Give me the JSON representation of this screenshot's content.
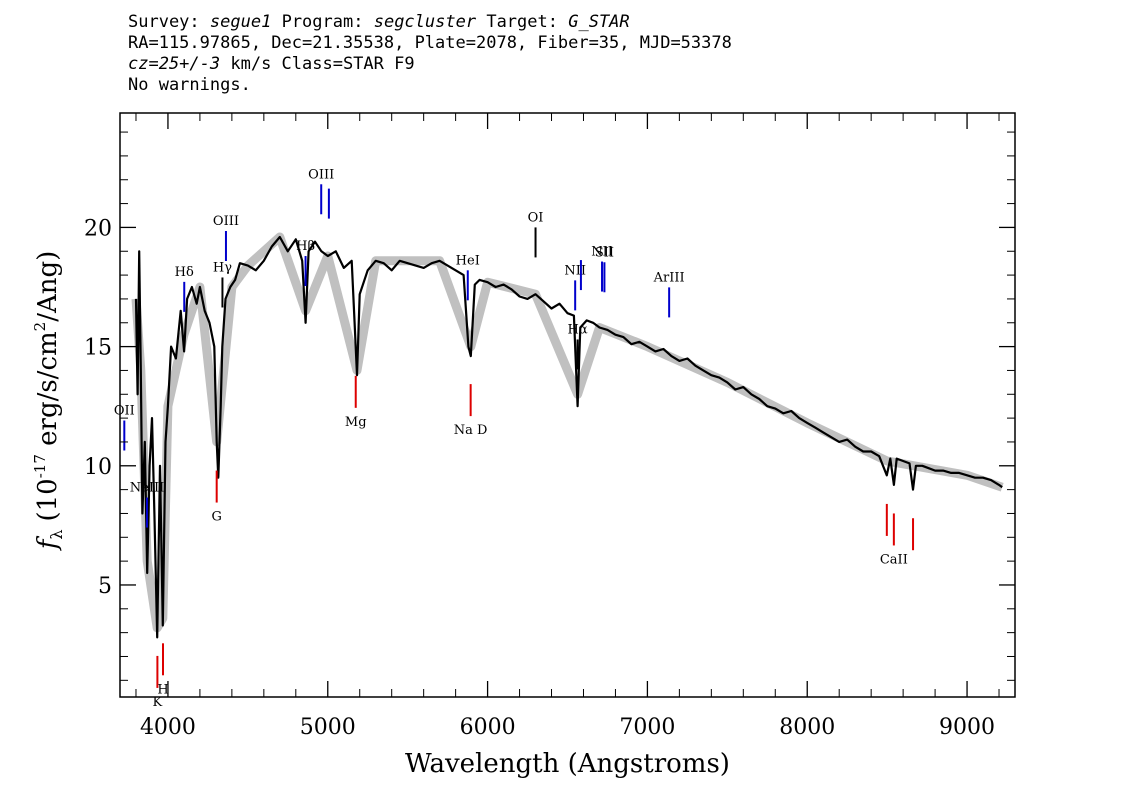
{
  "header": {
    "survey_label": "Survey:",
    "survey": "segue1",
    "program_label": "Program:",
    "program": "segcluster",
    "target_label": "Target:",
    "target": "G_STAR",
    "line2": "RA=115.97865, Dec=21.35538, Plate=2078, Fiber=35, MJD=53378",
    "cz": "cz=25+/-3",
    "line3_rest": " km/s Class=STAR F9",
    "line4": "No warnings."
  },
  "chart_data": {
    "type": "line",
    "xlabel": "Wavelength (Angstroms)",
    "ylabel_main": "(10",
    "ylabel_exp": "-17",
    "ylabel_mid": " erg/s/cm",
    "ylabel_exp2": "2",
    "ylabel_end": "/Ang)",
    "ylabel_symbol": "f",
    "ylabel_sub": "λ",
    "xlim": [
      3700,
      9300
    ],
    "ylim": [
      0.3,
      24.8
    ],
    "x_ticks": [
      4000,
      5000,
      6000,
      7000,
      8000,
      9000
    ],
    "x_tick_labels": [
      "4000",
      "5000",
      "6000",
      "7000",
      "8000",
      "9000"
    ],
    "y_ticks": [
      5,
      10,
      15,
      20
    ],
    "y_tick_labels": [
      "5",
      "10",
      "15",
      "20"
    ],
    "series": [
      {
        "color": "#000000",
        "points": [
          [
            3800,
            17
          ],
          [
            3810,
            13
          ],
          [
            3820,
            19
          ],
          [
            3830,
            14
          ],
          [
            3840,
            8
          ],
          [
            3855,
            11
          ],
          [
            3870,
            5.5
          ],
          [
            3885,
            10
          ],
          [
            3900,
            12
          ],
          [
            3915,
            8
          ],
          [
            3933,
            2.8
          ],
          [
            3950,
            10
          ],
          [
            3968,
            3.3
          ],
          [
            3985,
            11
          ],
          [
            4000,
            12.5
          ],
          [
            4020,
            15
          ],
          [
            4050,
            14.5
          ],
          [
            4080,
            16.5
          ],
          [
            4101,
            14.8
          ],
          [
            4120,
            17
          ],
          [
            4150,
            17.5
          ],
          [
            4180,
            16.8
          ],
          [
            4200,
            17.5
          ],
          [
            4230,
            16.5
          ],
          [
            4260,
            16
          ],
          [
            4290,
            15
          ],
          [
            4305,
            11
          ],
          [
            4315,
            9.5
          ],
          [
            4330,
            12.5
          ],
          [
            4340,
            15
          ],
          [
            4360,
            17
          ],
          [
            4390,
            17.5
          ],
          [
            4420,
            17.8
          ],
          [
            4450,
            18.5
          ],
          [
            4500,
            18.4
          ],
          [
            4550,
            18.2
          ],
          [
            4600,
            18.6
          ],
          [
            4650,
            19.2
          ],
          [
            4700,
            19.6
          ],
          [
            4750,
            19
          ],
          [
            4800,
            19.5
          ],
          [
            4840,
            18.6
          ],
          [
            4861,
            16
          ],
          [
            4880,
            19
          ],
          [
            4920,
            19.4
          ],
          [
            4960,
            19
          ],
          [
            5000,
            18.8
          ],
          [
            5050,
            19
          ],
          [
            5100,
            18.3
          ],
          [
            5150,
            18.6
          ],
          [
            5168,
            16
          ],
          [
            5183,
            13.8
          ],
          [
            5200,
            17.2
          ],
          [
            5250,
            18.2
          ],
          [
            5300,
            18.6
          ],
          [
            5350,
            18.5
          ],
          [
            5400,
            18.2
          ],
          [
            5450,
            18.6
          ],
          [
            5500,
            18.5
          ],
          [
            5550,
            18.4
          ],
          [
            5600,
            18.3
          ],
          [
            5650,
            18.5
          ],
          [
            5700,
            18.6
          ],
          [
            5750,
            18.4
          ],
          [
            5800,
            18.2
          ],
          [
            5850,
            18
          ],
          [
            5880,
            15
          ],
          [
            5895,
            14.6
          ],
          [
            5920,
            17.6
          ],
          [
            5950,
            17.8
          ],
          [
            6000,
            17.7
          ],
          [
            6050,
            17.5
          ],
          [
            6100,
            17.6
          ],
          [
            6150,
            17.4
          ],
          [
            6200,
            17.1
          ],
          [
            6250,
            17
          ],
          [
            6300,
            17.2
          ],
          [
            6350,
            16.9
          ],
          [
            6400,
            16.6
          ],
          [
            6450,
            16.8
          ],
          [
            6500,
            16.4
          ],
          [
            6540,
            16.3
          ],
          [
            6563,
            12.5
          ],
          [
            6580,
            15.8
          ],
          [
            6620,
            16.1
          ],
          [
            6660,
            16
          ],
          [
            6700,
            15.8
          ],
          [
            6750,
            15.7
          ],
          [
            6800,
            15.5
          ],
          [
            6850,
            15.4
          ],
          [
            6900,
            15.1
          ],
          [
            6950,
            15.2
          ],
          [
            7000,
            15
          ],
          [
            7050,
            14.8
          ],
          [
            7100,
            14.9
          ],
          [
            7150,
            14.6
          ],
          [
            7200,
            14.4
          ],
          [
            7250,
            14.5
          ],
          [
            7300,
            14.2
          ],
          [
            7350,
            14
          ],
          [
            7400,
            13.8
          ],
          [
            7450,
            13.7
          ],
          [
            7500,
            13.5
          ],
          [
            7550,
            13.2
          ],
          [
            7600,
            13.3
          ],
          [
            7650,
            13
          ],
          [
            7700,
            12.8
          ],
          [
            7750,
            12.5
          ],
          [
            7800,
            12.4
          ],
          [
            7850,
            12.2
          ],
          [
            7900,
            12.3
          ],
          [
            7950,
            12
          ],
          [
            8000,
            11.8
          ],
          [
            8050,
            11.6
          ],
          [
            8100,
            11.4
          ],
          [
            8150,
            11.2
          ],
          [
            8200,
            11
          ],
          [
            8250,
            11.1
          ],
          [
            8300,
            10.8
          ],
          [
            8350,
            10.6
          ],
          [
            8400,
            10.6
          ],
          [
            8450,
            10.4
          ],
          [
            8498,
            9.6
          ],
          [
            8520,
            10.3
          ],
          [
            8542,
            9.2
          ],
          [
            8560,
            10.3
          ],
          [
            8600,
            10.2
          ],
          [
            8640,
            10.1
          ],
          [
            8662,
            9
          ],
          [
            8680,
            10
          ],
          [
            8720,
            10
          ],
          [
            8760,
            9.9
          ],
          [
            8800,
            9.8
          ],
          [
            8850,
            9.8
          ],
          [
            8900,
            9.7
          ],
          [
            8950,
            9.7
          ],
          [
            9000,
            9.6
          ],
          [
            9050,
            9.5
          ],
          [
            9100,
            9.5
          ],
          [
            9150,
            9.4
          ],
          [
            9200,
            9.2
          ],
          [
            9220,
            9.1
          ]
        ]
      }
    ],
    "error_band": {
      "color": "#c0c0c0",
      "points": [
        [
          3800,
          17
        ],
        [
          3830,
          14
        ],
        [
          3870,
          6
        ],
        [
          3933,
          3.2
        ],
        [
          3968,
          3.6
        ],
        [
          4000,
          12.5
        ],
        [
          4100,
          15.5
        ],
        [
          4200,
          17.5
        ],
        [
          4305,
          11
        ],
        [
          4400,
          17.5
        ],
        [
          4500,
          18.4
        ],
        [
          4700,
          19.6
        ],
        [
          4861,
          16.5
        ],
        [
          5000,
          18.8
        ],
        [
          5183,
          14
        ],
        [
          5300,
          18.6
        ],
        [
          5577,
          18.6
        ],
        [
          5700,
          18.6
        ],
        [
          5895,
          15
        ],
        [
          6000,
          17.7
        ],
        [
          6300,
          17.2
        ],
        [
          6563,
          13
        ],
        [
          6700,
          15.8
        ],
        [
          7000,
          15
        ],
        [
          7500,
          13.5
        ],
        [
          8000,
          11.8
        ],
        [
          8500,
          10.2
        ],
        [
          9000,
          9.6
        ],
        [
          9220,
          9.1
        ]
      ]
    },
    "emission_lines": [
      {
        "label": "OII",
        "x": 3727,
        "color": "#0000cc"
      },
      {
        "label": "NeIII",
        "x": 3869,
        "color": "#0000cc"
      },
      {
        "label": "Hδ",
        "x": 4102,
        "color": "#0000cc"
      },
      {
        "label": "Hγ",
        "x": 4341,
        "color": "#000000"
      },
      {
        "label": "OIII",
        "x": 4363,
        "color": "#0000cc"
      },
      {
        "label": "Hβ",
        "x": 4861,
        "color": "#0000cc"
      },
      {
        "label": "OIII",
        "x": 4959,
        "color": "#0000cc"
      },
      {
        "label": "",
        "x": 5007,
        "color": "#0000cc"
      },
      {
        "label": "HeI",
        "x": 5876,
        "color": "#0000cc"
      },
      {
        "label": "OI",
        "x": 6300,
        "color": "#000000"
      },
      {
        "label": "NII",
        "x": 6548,
        "color": "#0000cc"
      },
      {
        "label": "Hα",
        "x": 6563,
        "color": "#000000"
      },
      {
        "label": "",
        "x": 6584,
        "color": "#0000cc"
      },
      {
        "label": "NII",
        "x": 6716,
        "color": "#0000cc"
      },
      {
        "label": "SII",
        "x": 6731,
        "color": "#0000cc"
      },
      {
        "label": "ArIII",
        "x": 7136,
        "color": "#0000cc"
      }
    ],
    "absorption_lines": [
      {
        "label": "K",
        "x": 3934,
        "color": "#dd0000"
      },
      {
        "label": "H",
        "x": 3969,
        "color": "#dd0000"
      },
      {
        "label": "G",
        "x": 4305,
        "color": "#dd0000"
      },
      {
        "label": "Mg",
        "x": 5175,
        "color": "#dd0000"
      },
      {
        "label": "Na D",
        "x": 5894,
        "color": "#dd0000"
      },
      {
        "label": "",
        "x": 8498,
        "color": "#dd0000"
      },
      {
        "label": "CaII",
        "x": 8542,
        "color": "#dd0000"
      },
      {
        "label": "",
        "x": 8662,
        "color": "#dd0000"
      }
    ]
  }
}
